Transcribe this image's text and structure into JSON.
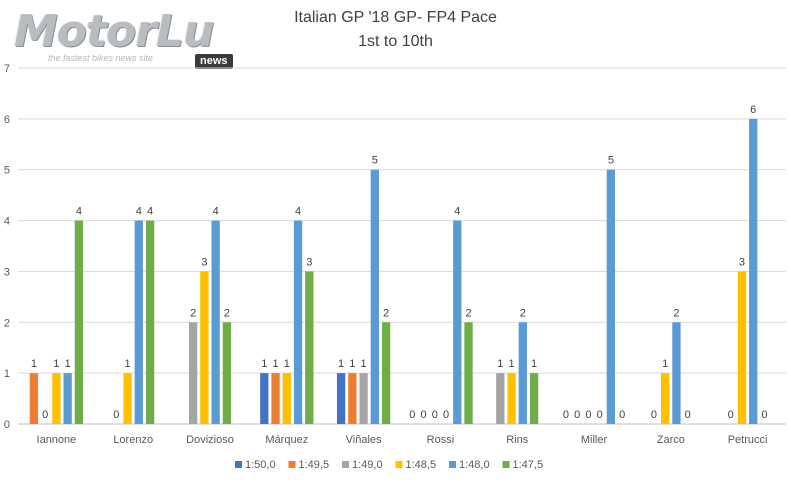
{
  "logo": {
    "word": "MotorLu",
    "tagline": "the fastest bikes news site",
    "badge": "news"
  },
  "chart_data": {
    "type": "bar",
    "title": "Italian GP '18 GP- FP4 Pace",
    "subtitle": "1st to 10th",
    "xlabel": "",
    "ylabel": "",
    "ylim": [
      0,
      7
    ],
    "yticks": [
      0,
      1,
      2,
      3,
      4,
      5,
      6,
      7
    ],
    "grid": true,
    "legend_position": "bottom",
    "categories": [
      "Iannone",
      "Lorenzo",
      "Dovizioso",
      "Márquez",
      "Viñales",
      "Rossi",
      "Rins",
      "Miller",
      "Zarco",
      "Petrucci"
    ],
    "series": [
      {
        "name": "1:50,0",
        "color": "#4472c4",
        "values": [
          null,
          null,
          null,
          1,
          1,
          0,
          null,
          0,
          null,
          null
        ]
      },
      {
        "name": "1:49,5",
        "color": "#ed7d31",
        "values": [
          1,
          null,
          null,
          1,
          1,
          0,
          null,
          0,
          null,
          null
        ]
      },
      {
        "name": "1:49,0",
        "color": "#a5a5a5",
        "values": [
          0,
          0,
          2,
          null,
          1,
          0,
          1,
          0,
          0,
          0
        ]
      },
      {
        "name": "1:48,5",
        "color": "#ffc000",
        "values": [
          1,
          1,
          3,
          1,
          null,
          0,
          1,
          0,
          1,
          3
        ]
      },
      {
        "name": "1:48,0",
        "color": "#5b9bd5",
        "values": [
          1,
          4,
          4,
          4,
          5,
          4,
          2,
          5,
          2,
          6
        ]
      },
      {
        "name": "1:47,5",
        "color": "#70ad47",
        "values": [
          4,
          4,
          2,
          3,
          2,
          2,
          1,
          0,
          0,
          0
        ]
      }
    ],
    "zero_labels": [
      {
        "category": 0,
        "count": 2
      },
      {
        "category": 1,
        "count": 3
      },
      {
        "category": 2,
        "count": 2
      },
      {
        "category": 3,
        "count": 1
      },
      {
        "category": 4,
        "count": 1
      },
      {
        "category": 5,
        "count": 4
      },
      {
        "category": 6,
        "count": 2
      },
      {
        "category": 7,
        "count": 5
      },
      {
        "category": 8,
        "count": 3
      },
      {
        "category": 9,
        "count": 4
      }
    ]
  }
}
